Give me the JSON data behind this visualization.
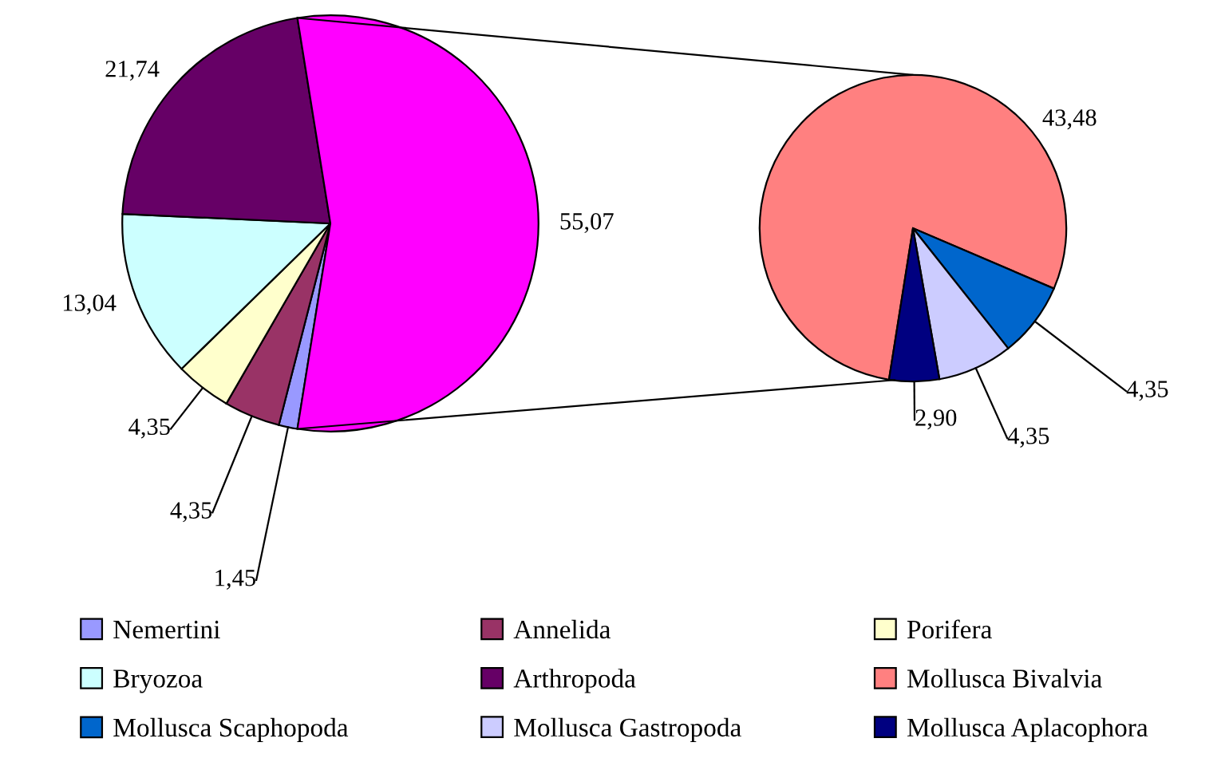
{
  "chart_data": [
    {
      "type": "pie",
      "categories": [
        "Nemertini",
        "Annelida",
        "Porifera",
        "Bryozoa",
        "Arthropoda",
        null
      ],
      "values": [
        1.45,
        4.35,
        4.35,
        13.04,
        21.74,
        55.07
      ],
      "colors": [
        "#9999ff",
        "#993366",
        "#ffffcc",
        "#ccffff",
        "#660066",
        "#ff00ff"
      ],
      "value_labels": [
        "1,45",
        "4,35",
        "4,35",
        "13,04",
        "21,74",
        "55,07"
      ],
      "legend": "bottom"
    },
    {
      "type": "pie",
      "categories": [
        "Mollusca Bivalvia",
        "Mollusca Scaphopoda",
        "Mollusca Gastropoda",
        "Mollusca Aplacophora"
      ],
      "values": [
        43.48,
        4.35,
        4.35,
        2.9
      ],
      "colors": [
        "#ff8080",
        "#0066cc",
        "#ccccff",
        "#000080"
      ],
      "value_labels": [
        "43,48",
        "4,35",
        "4,35",
        "2,90"
      ],
      "legend": "bottom"
    }
  ]
}
